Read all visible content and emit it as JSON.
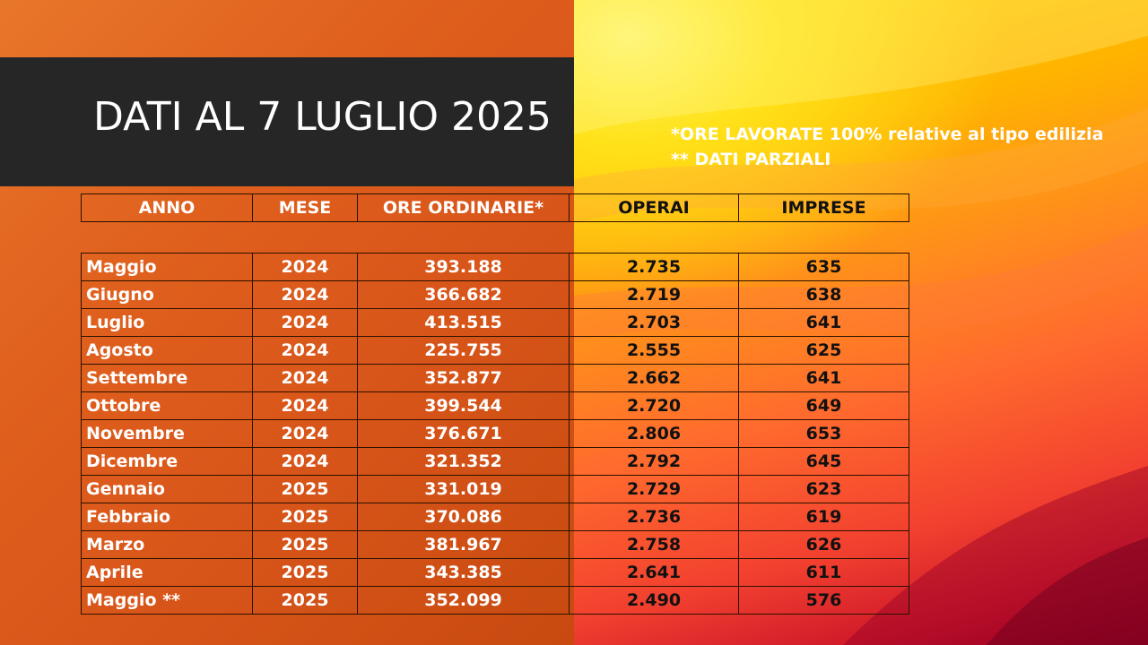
{
  "title": "DATI AL 7 LUGLIO 2025",
  "notes": [
    "*ORE LAVORATE 100% relative al tipo edilizia",
    "** DATI PARZIALI"
  ],
  "table": {
    "headers": [
      "ANNO",
      "MESE",
      "ORE ORDINARIE*",
      "OPERAI",
      "IMPRESE"
    ],
    "rows": [
      [
        "Maggio",
        "2024",
        "393.188",
        "2.735",
        "635"
      ],
      [
        "Giugno",
        "2024",
        "366.682",
        "2.719",
        "638"
      ],
      [
        "Luglio",
        "2024",
        "413.515",
        "2.703",
        "641"
      ],
      [
        "Agosto",
        "2024",
        "225.755",
        "2.555",
        "625"
      ],
      [
        "Settembre",
        "2024",
        "352.877",
        "2.662",
        "641"
      ],
      [
        "Ottobre",
        "2024",
        "399.544",
        "2.720",
        "649"
      ],
      [
        "Novembre",
        "2024",
        "376.671",
        "2.806",
        "653"
      ],
      [
        "Dicembre",
        "2024",
        "321.352",
        "2.792",
        "645"
      ],
      [
        "Gennaio",
        "2025",
        "331.019",
        "2.729",
        "623"
      ],
      [
        "Febbraio",
        "2025",
        "370.086",
        "2.736",
        "619"
      ],
      [
        "Marzo",
        "2025",
        "381.967",
        "2.758",
        "626"
      ],
      [
        "Aprile",
        "2025",
        "343.385",
        "2.641",
        "611"
      ],
      [
        "Maggio **",
        "2025",
        "352.099",
        "2.490",
        "576"
      ]
    ]
  },
  "colors": {
    "title_band": "#262626",
    "left_background": "#df5f1d",
    "right_background": "#ff8a1e"
  }
}
